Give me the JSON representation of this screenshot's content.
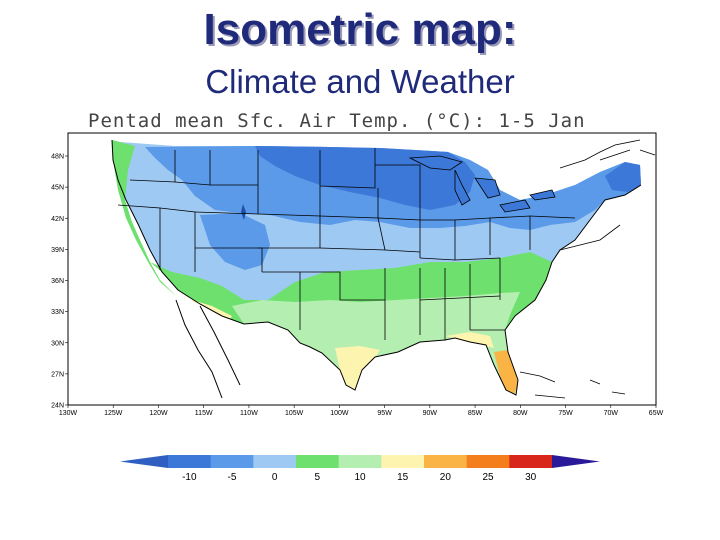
{
  "slide": {
    "title": "Isometric map:",
    "subtitle": "Climate and Weather"
  },
  "map": {
    "title": "Pentad mean Sfc. Air Temp. (°C): 1-5 Jan",
    "lat_labels": [
      "48N",
      "45N",
      "42N",
      "39N",
      "36N",
      "33N",
      "30N",
      "27N",
      "24N"
    ],
    "lon_labels": [
      "130W",
      "125W",
      "120W",
      "115W",
      "110W",
      "105W",
      "100W",
      "95W",
      "90W",
      "85W",
      "80W",
      "75W",
      "70W",
      "65W"
    ],
    "legend": {
      "ticks": [
        "-10",
        "-5",
        "0",
        "5",
        "10",
        "15",
        "20",
        "25",
        "30"
      ],
      "colors": [
        "#3c78d8",
        "#5a9ae8",
        "#9ec9f3",
        "#6ee06e",
        "#b4eeb0",
        "#fdf4b0",
        "#f9b445",
        "#f47e1b",
        "#d9261a"
      ],
      "under_color": "#2f5fc0",
      "over_color": "#2a1a9a"
    }
  }
}
